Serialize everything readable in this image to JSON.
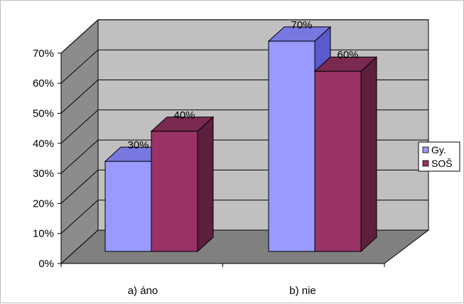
{
  "chart_data": {
    "type": "bar",
    "categories": [
      "a) áno",
      "b) nie"
    ],
    "series": [
      {
        "name": "Gy.",
        "values": [
          30,
          70
        ],
        "color": "#9999ff",
        "side_color": "#5a5acc",
        "top_color": "#7878e0"
      },
      {
        "name": "SOŠ",
        "values": [
          40,
          60
        ],
        "color": "#993366",
        "side_color": "#5c1f3d",
        "top_color": "#7a2950"
      }
    ],
    "data_labels": [
      [
        "30%",
        "70%"
      ],
      [
        "40%",
        "60%"
      ]
    ],
    "y_ticks": [
      "0%",
      "10%",
      "20%",
      "30%",
      "40%",
      "50%",
      "60%",
      "70%"
    ],
    "ylim": [
      0,
      70
    ],
    "title": "",
    "xlabel": "",
    "ylabel": "",
    "grid": true,
    "legend_position": "right",
    "wall_color": "#c0c0c0",
    "floor_color": "#808080",
    "side_wall_color": "#8c8c8c"
  }
}
